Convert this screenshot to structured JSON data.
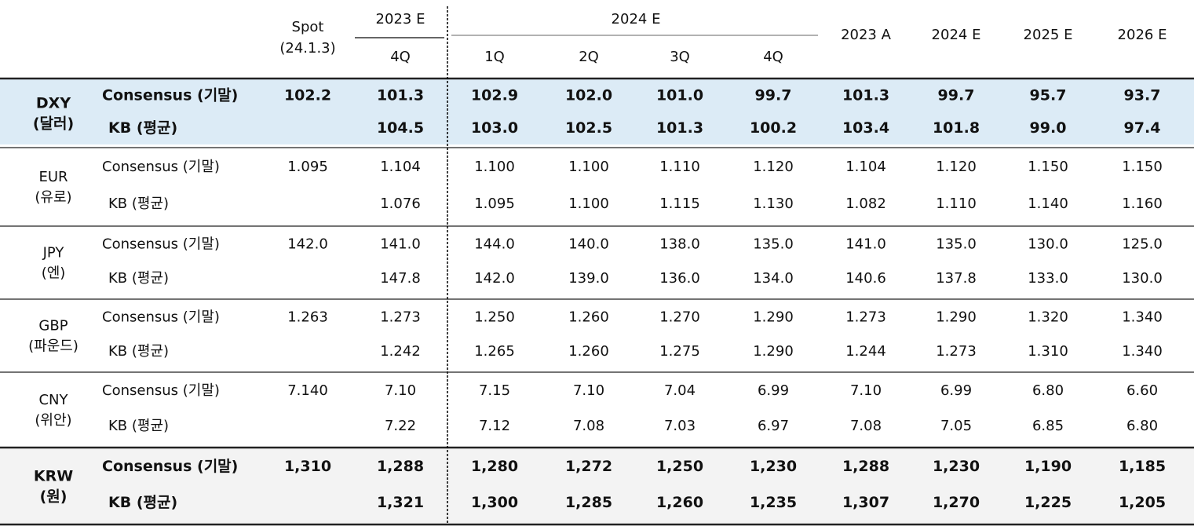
{
  "header": {
    "spot": "Spot",
    "spot_date": "(24.1.3)",
    "y2023e": "2023 E",
    "y2024e": "2024 E",
    "quarters": [
      "4Q",
      "1Q",
      "2Q",
      "3Q",
      "4Q"
    ],
    "annual": [
      "2023 A",
      "2024 E",
      "2025 E",
      "2026 E"
    ]
  },
  "groups": [
    {
      "code": "DXY",
      "name": "(달러)",
      "rows": [
        {
          "label": "Consensus (기말)",
          "spot": "102.2",
          "values": [
            "101.3",
            "102.9",
            "102.0",
            "101.0",
            "99.7",
            "101.3",
            "99.7",
            "95.7",
            "93.7"
          ]
        },
        {
          "label": "KB (평균)",
          "values": [
            "104.5",
            "103.0",
            "102.5",
            "101.3",
            "100.2",
            "103.4",
            "101.8",
            "99.0",
            "97.4"
          ]
        }
      ]
    },
    {
      "code": "EUR",
      "name": "(유로)",
      "rows": [
        {
          "label": "Consensus (기말)",
          "spot": "1.095",
          "values": [
            "1.104",
            "1.100",
            "1.100",
            "1.110",
            "1.120",
            "1.104",
            "1.120",
            "1.150",
            "1.150"
          ]
        },
        {
          "label": "KB (평균)",
          "values": [
            "1.076",
            "1.095",
            "1.100",
            "1.115",
            "1.130",
            "1.082",
            "1.110",
            "1.140",
            "1.160"
          ]
        }
      ]
    },
    {
      "code": "JPY",
      "name": "(엔)",
      "rows": [
        {
          "label": "Consensus (기말)",
          "spot": "142.0",
          "values": [
            "141.0",
            "144.0",
            "140.0",
            "138.0",
            "135.0",
            "141.0",
            "135.0",
            "130.0",
            "125.0"
          ]
        },
        {
          "label": "KB (평균)",
          "values": [
            "147.8",
            "142.0",
            "139.0",
            "136.0",
            "134.0",
            "140.6",
            "137.8",
            "133.0",
            "130.0"
          ]
        }
      ]
    },
    {
      "code": "GBP",
      "name": "(파운드)",
      "rows": [
        {
          "label": "Consensus (기말)",
          "spot": "1.263",
          "values": [
            "1.273",
            "1.250",
            "1.260",
            "1.270",
            "1.290",
            "1.273",
            "1.290",
            "1.320",
            "1.340"
          ]
        },
        {
          "label": "KB (평균)",
          "values": [
            "1.242",
            "1.265",
            "1.260",
            "1.275",
            "1.290",
            "1.244",
            "1.273",
            "1.310",
            "1.340"
          ]
        }
      ]
    },
    {
      "code": "CNY",
      "name": "(위안)",
      "rows": [
        {
          "label": "Consensus (기말)",
          "spot": "7.140",
          "values": [
            "7.10",
            "7.15",
            "7.10",
            "7.04",
            "6.99",
            "7.10",
            "6.99",
            "6.80",
            "6.60"
          ]
        },
        {
          "label": "KB (평균)",
          "values": [
            "7.22",
            "7.12",
            "7.08",
            "7.03",
            "6.97",
            "7.08",
            "7.05",
            "6.85",
            "6.80"
          ]
        }
      ]
    },
    {
      "code": "KRW",
      "name": "(원)",
      "rows": [
        {
          "label": "Consensus (기말)",
          "spot": "1,310",
          "values": [
            "1,288",
            "1,280",
            "1,272",
            "1,250",
            "1,230",
            "1,288",
            "1,230",
            "1,190",
            "1,185"
          ]
        },
        {
          "label": "KB (평균)",
          "values": [
            "1,321",
            "1,300",
            "1,285",
            "1,260",
            "1,235",
            "1,307",
            "1,270",
            "1,225",
            "1,205"
          ]
        }
      ]
    }
  ]
}
